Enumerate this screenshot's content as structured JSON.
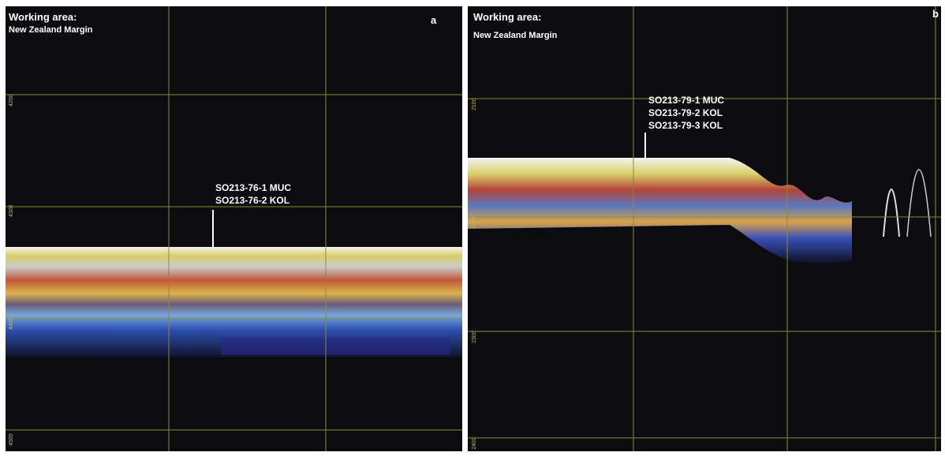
{
  "panels": [
    {
      "working_area": "Working area:",
      "region": "New Zealand Margin",
      "letter": "a",
      "stations": [
        "SO213-76-1 MUC",
        "SO213-76-2 KOL"
      ],
      "depth_labels": [
        "4200",
        "4300",
        "4400",
        "4500"
      ]
    },
    {
      "working_area": "Working area:",
      "region": "New Zealand Margin",
      "letter": "b",
      "stations": [
        "SO213-79-1 MUC",
        "SO213-79-2 KOL",
        "SO213-79-3 KOL"
      ],
      "depth_labels": [
        "2100",
        "2200",
        "2300",
        "2400"
      ]
    }
  ]
}
